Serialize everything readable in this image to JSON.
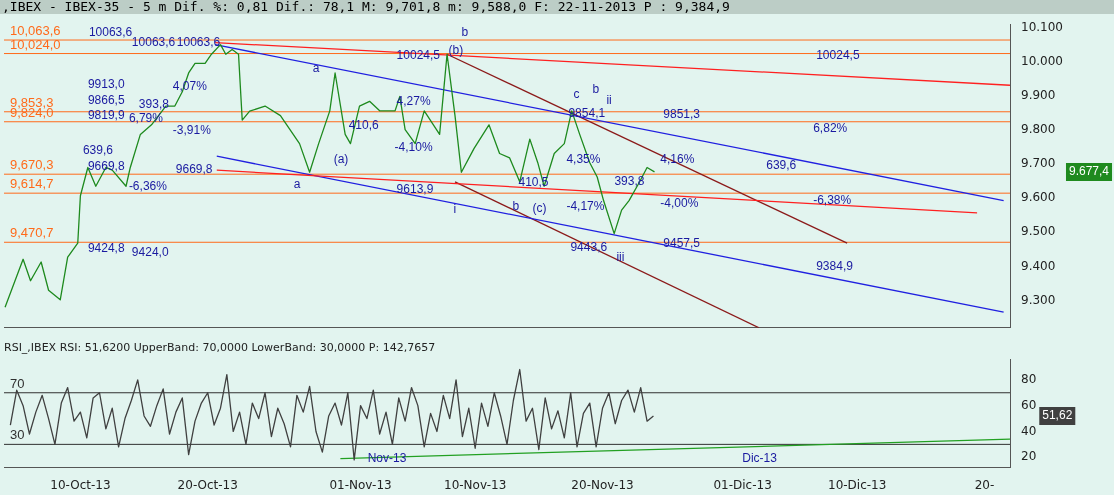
{
  "chart_data": [
    {
      "type": "line",
      "title": ",IBEX - IBEX-35 -  5 m Dif. %: 0,81 Dif.: 78,1 M: 9,701,8 m: 9,588,0 F: 22-11-2013 P : 9,384,9",
      "marker": "none",
      "tick_labels": "y",
      "xlim": [
        "2013-10-04",
        "2013-12-22"
      ],
      "xticks": [
        {
          "value": "2013-10-10",
          "label": null
        },
        {
          "value": "2013-10-20",
          "label": null
        },
        {
          "value": "2013-11-01",
          "label": null
        },
        {
          "value": "2013-11-10",
          "label": null
        },
        {
          "value": "2013-11-20",
          "label": null
        },
        {
          "value": "2013-12-01",
          "label": null
        },
        {
          "value": "2013-12-10",
          "label": null
        },
        {
          "value": "2013-12-20",
          "label": null
        }
      ],
      "ylim": [
        9220,
        10110
      ],
      "yticks": [
        {
          "value": 9300,
          "label": "9.300"
        },
        {
          "value": 9400,
          "label": "9.400"
        },
        {
          "value": 9500,
          "label": "9.500"
        },
        {
          "value": 9600,
          "label": "9.600"
        },
        {
          "value": 9700,
          "label": "9.700"
        },
        {
          "value": 9800,
          "label": "9.800"
        },
        {
          "value": 9900,
          "label": "9.900"
        },
        {
          "value": 10000,
          "label": "10.000"
        },
        {
          "value": 10100,
          "label": "10.100"
        }
      ],
      "series": [
        {
          "color": "#1e8a1e",
          "x": [
            "2013-10-04T02:00",
            "2013-10-05T12:00",
            "2013-10-06T02:00",
            "2013-10-06T22:00",
            "2013-10-07T12:00",
            "2013-10-08T10:00",
            "2013-10-09T00:00",
            "2013-10-09T19:00",
            "2013-10-10T00:00",
            "2013-10-10T14:00",
            "2013-10-11T05:00",
            "2013-10-12T00:00",
            "2013-10-12T12:00",
            "2013-10-13T14:00",
            "2013-10-13T22:00",
            "2013-10-14T17:00",
            "2013-10-15T14:00",
            "2013-10-16T17:00",
            "2013-10-17T10:00",
            "2013-10-18T00:00",
            "2013-10-18T12:00",
            "2013-10-19T00:00",
            "2013-10-19T19:00",
            "2013-10-20T07:00",
            "2013-10-21T00:00",
            "2013-10-21T10:00",
            "2013-10-21T22:00",
            "2013-10-22T10:00",
            "2013-10-22T17:00",
            "2013-10-23T07:00",
            "2013-10-24T12:00",
            "2013-10-25T17:00",
            "2013-10-27T05:00",
            "2013-10-28T00:00",
            "2013-10-28T17:00",
            "2013-10-29T14:00",
            "2013-10-30T00:00",
            "2013-10-30T19:00",
            "2013-10-31T05:00",
            "2013-10-31T22:00",
            "2013-11-01T17:00",
            "2013-11-02T12:00",
            "2013-11-03T17:00",
            "2013-11-04T02:00",
            "2013-11-04T12:00",
            "2013-11-05T07:00",
            "2013-11-06T00:00",
            "2013-11-07T05:00",
            "2013-11-07T19:00",
            "2013-11-08T10:00",
            "2013-11-08T22:00",
            "2013-11-09T22:00",
            "2013-11-11T02:00",
            "2013-11-11T22:00",
            "2013-11-12T17:00",
            "2013-11-13T12:00",
            "2013-11-14T07:00",
            "2013-11-14T22:00",
            "2013-11-15T10:00",
            "2013-11-16T05:00",
            "2013-11-17T00:00",
            "2013-11-17T14:00",
            "2013-11-18T05:00",
            "2013-11-19T00:00",
            "2013-11-19T14:00",
            "2013-11-20T02:00",
            "2013-11-20T22:00",
            "2013-11-21T12:00",
            "2013-11-22T02:00",
            "2013-11-22T22:00",
            "2013-11-23T12:00",
            "2013-11-24T02:00"
          ],
          "values": [
            9280,
            9421,
            9358,
            9413,
            9330,
            9302,
            9427,
            9468,
            9607,
            9690,
            9635,
            9690,
            9682,
            9635,
            9690,
            9787,
            9815,
            9870,
            9870,
            9912,
            9967,
            9995,
            9995,
            10022,
            10050,
            10022,
            10036,
            10022,
            9829,
            9855,
            9870,
            9842,
            9760,
            9676,
            9760,
            9856,
            9967,
            9787,
            9760,
            9870,
            9884,
            9856,
            9856,
            9898,
            9801,
            9760,
            9856,
            9787,
            10022,
            9842,
            9676,
            9746,
            9815,
            9731,
            9718,
            9648,
            9773,
            9704,
            9635,
            9731,
            9760,
            9856,
            9787,
            9704,
            9662,
            9593,
            9496,
            9565,
            9593,
            9648,
            9690,
            9677
          ]
        },
        {
          "type": "line",
          "color": "#ff2020",
          "x": [
            "2013-10-20T14:00",
            "2013-12-22"
          ],
          "values": [
            10056,
            9931
          ]
        },
        {
          "type": "line",
          "color": "#ff2020",
          "x": [
            "2013-10-20T17:00",
            "2013-12-19T10:00"
          ],
          "values": [
            9682,
            9557
          ]
        },
        {
          "type": "line",
          "color": "#2020e0",
          "x": [
            "2013-10-20T14:00",
            "2013-12-21T12:00"
          ],
          "values": [
            10050,
            9593
          ]
        },
        {
          "type": "line",
          "color": "#2020e0",
          "x": [
            "2013-10-20T17:00",
            "2013-12-21T12:00"
          ],
          "values": [
            9723,
            9266
          ]
        },
        {
          "type": "line",
          "color": "#8b1a1a",
          "x": [
            "2013-11-07T19:00",
            "2013-12-09T05:00"
          ],
          "values": [
            10022,
            9468
          ]
        },
        {
          "type": "line",
          "color": "#8b1a1a",
          "x": [
            "2013-11-08T10:00",
            "2013-12-02T07:00"
          ],
          "values": [
            9648,
            9220
          ]
        }
      ],
      "ref_lines": [
        {
          "axis": "y",
          "value": 10063.6,
          "label": "10,063,6",
          "color": "#ff6a1a"
        },
        {
          "axis": "y",
          "value": 10024.0,
          "label": "10,024,0",
          "color": "#ff6a1a"
        },
        {
          "axis": "y",
          "value": 9853.3,
          "label": "9,853,3",
          "color": "#ff6a1a"
        },
        {
          "axis": "y",
          "value": 9824.0,
          "label": "9,824,0",
          "color": "#ff6a1a"
        },
        {
          "axis": "y",
          "value": 9670.3,
          "label": "9,670,3",
          "color": "#ff6a1a"
        },
        {
          "axis": "y",
          "value": 9614.7,
          "label": "9,614,7",
          "color": "#ff6a1a"
        },
        {
          "axis": "y",
          "value": 9470.7,
          "label": "9,470,7",
          "color": "#ff6a1a"
        }
      ],
      "annotations": [
        "9.677,4",
        "10063,6",
        "10063,6",
        "10063,6",
        "9913,0",
        "9866,5",
        "9819,9",
        "393,8",
        "6,79%",
        "4,07%",
        "-3,91%",
        "639,6",
        "9669,8",
        "9669,8",
        "-6,36%",
        "9424,8",
        "9424,0",
        "a",
        "10024,5",
        "(b)",
        "b",
        "4,27%",
        "410,6",
        "-4,10%",
        "(a)",
        "a",
        "9613,9",
        "i",
        "b",
        "(c)",
        "410,5",
        "c",
        "b",
        "ii",
        "9854,1",
        "4,35%",
        "-4,17%",
        "393,8",
        "9443,6",
        "iii",
        "9851,3",
        "4,16%",
        "-4,00%",
        "9457,5",
        "639,6",
        "6,82%",
        "10024,5",
        "-6,38%",
        "9384,9"
      ]
    },
    {
      "type": "line",
      "title": "RSI_,IBEX RSI: 51,6200 UpperBand: 70,0000 LowerBand: 30,0000 P: 142,7657",
      "marker": "none",
      "xlim": [
        "2013-10-04",
        "2013-12-22"
      ],
      "xticks": [
        {
          "value": "2013-10-10",
          "label": "10-Oct-13"
        },
        {
          "value": "2013-10-20",
          "label": "20-Oct-13"
        },
        {
          "value": "2013-11-01",
          "label": "01-Nov-13"
        },
        {
          "value": "2013-11-10",
          "label": "10-Nov-13"
        },
        {
          "value": "2013-11-20",
          "label": "20-Nov-13"
        },
        {
          "value": "2013-12-01",
          "label": "01-Dic-13"
        },
        {
          "value": "2013-12-10",
          "label": "10-Dic-13"
        },
        {
          "value": "2013-12-20",
          "label": "20-"
        }
      ],
      "ylim": [
        12,
        96
      ],
      "yticks": [
        20,
        40,
        60,
        80
      ],
      "series": [
        {
          "color": "#404040",
          "x": [
            "2013-10-04T12:00",
            "2013-10-05",
            "2013-10-05T12:00",
            "2013-10-06",
            "2013-10-06T12:00",
            "2013-10-07",
            "2013-10-07T12:00",
            "2013-10-08",
            "2013-10-08T12:00",
            "2013-10-09",
            "2013-10-09T12:00",
            "2013-10-10",
            "2013-10-10T12:00",
            "2013-10-11",
            "2013-10-11T12:00",
            "2013-10-12",
            "2013-10-12T12:00",
            "2013-10-13",
            "2013-10-13T12:00",
            "2013-10-14",
            "2013-10-14T12:00",
            "2013-10-15",
            "2013-10-15T12:00",
            "2013-10-16",
            "2013-10-16T12:00",
            "2013-10-17",
            "2013-10-17T12:00",
            "2013-10-18",
            "2013-10-18T12:00",
            "2013-10-19",
            "2013-10-19T12:00",
            "2013-10-20",
            "2013-10-20T12:00",
            "2013-10-21",
            "2013-10-21T12:00",
            "2013-10-22",
            "2013-10-22T12:00",
            "2013-10-23",
            "2013-10-23T12:00",
            "2013-10-24",
            "2013-10-24T12:00",
            "2013-10-25",
            "2013-10-25T12:00",
            "2013-10-26",
            "2013-10-26T12:00",
            "2013-10-27",
            "2013-10-27T12:00",
            "2013-10-28",
            "2013-10-28T12:00",
            "2013-10-29",
            "2013-10-29T12:00",
            "2013-10-30",
            "2013-10-30T12:00",
            "2013-10-31",
            "2013-10-31T12:00",
            "2013-11-01",
            "2013-11-01T12:00",
            "2013-11-02",
            "2013-11-02T12:00",
            "2013-11-03",
            "2013-11-03T12:00",
            "2013-11-04",
            "2013-11-04T12:00",
            "2013-11-05",
            "2013-11-05T12:00",
            "2013-11-06",
            "2013-11-06T12:00",
            "2013-11-07",
            "2013-11-07T12:00",
            "2013-11-08",
            "2013-11-08T12:00",
            "2013-11-09",
            "2013-11-09T12:00",
            "2013-11-10",
            "2013-11-10T12:00",
            "2013-11-11",
            "2013-11-11T12:00",
            "2013-11-12",
            "2013-11-12T12:00",
            "2013-11-13",
            "2013-11-13T12:00",
            "2013-11-14",
            "2013-11-14T12:00",
            "2013-11-15",
            "2013-11-15T12:00",
            "2013-11-16",
            "2013-11-16T12:00",
            "2013-11-17",
            "2013-11-17T12:00",
            "2013-11-18",
            "2013-11-18T12:00",
            "2013-11-19",
            "2013-11-19T12:00",
            "2013-11-20",
            "2013-11-20T12:00",
            "2013-11-21",
            "2013-11-21T12:00",
            "2013-11-22",
            "2013-11-22T12:00",
            "2013-11-23",
            "2013-11-23T12:00",
            "2013-11-24"
          ],
          "values": [
            45,
            72,
            60,
            38,
            55,
            68,
            50,
            30,
            62,
            74,
            48,
            55,
            35,
            66,
            70,
            42,
            58,
            28,
            50,
            64,
            80,
            52,
            44,
            60,
            73,
            38,
            55,
            66,
            22,
            48,
            62,
            70,
            45,
            58,
            84,
            40,
            55,
            30,
            62,
            50,
            70,
            36,
            58,
            46,
            28,
            68,
            55,
            75,
            40,
            24,
            52,
            62,
            45,
            70,
            18,
            60,
            50,
            72,
            38,
            55,
            30,
            66,
            48,
            74,
            60,
            28,
            54,
            40,
            68,
            50,
            80,
            36,
            58,
            27,
            62,
            44,
            70,
            52,
            30,
            64,
            88,
            48,
            58,
            26,
            66,
            42,
            56,
            35,
            70,
            28,
            54,
            62,
            28,
            58,
            70,
            46,
            64,
            72,
            55,
            74,
            48,
            52
          ]
        },
        {
          "type": "line",
          "color": "#22a022",
          "x": [
            "2013-10-30T10:00",
            "2013-12-22"
          ],
          "values": [
            19,
            34
          ]
        }
      ],
      "ref_lines": [
        {
          "axis": "y",
          "value": 70,
          "label": "70",
          "color": "#303030"
        },
        {
          "axis": "y",
          "value": 30,
          "label": "30",
          "color": "#303030"
        }
      ],
      "annotations": [
        "51,62",
        "Nov-13",
        "Dic-13"
      ]
    }
  ]
}
